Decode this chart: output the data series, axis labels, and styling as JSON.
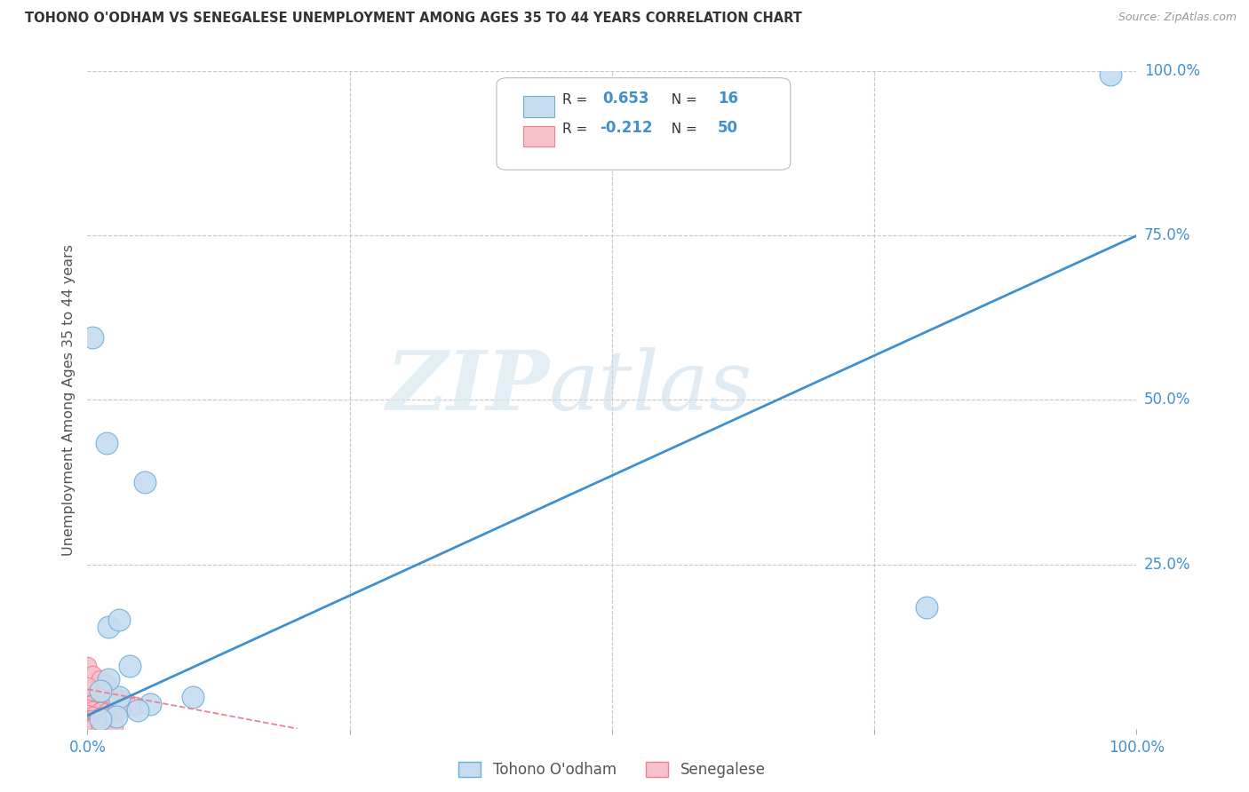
{
  "title": "TOHONO O'ODHAM VS SENEGALESE UNEMPLOYMENT AMONG AGES 35 TO 44 YEARS CORRELATION CHART",
  "source": "Source: ZipAtlas.com",
  "ylabel": "Unemployment Among Ages 35 to 44 years",
  "watermark_zip": "ZIP",
  "watermark_atlas": "atlas",
  "xlim": [
    0,
    1.0
  ],
  "ylim": [
    0,
    1.0
  ],
  "tohono_points": [
    [
      0.005,
      0.595
    ],
    [
      0.018,
      0.435
    ],
    [
      0.055,
      0.375
    ],
    [
      0.02,
      0.155
    ],
    [
      0.03,
      0.165
    ],
    [
      0.04,
      0.095
    ],
    [
      0.03,
      0.048
    ],
    [
      0.06,
      0.038
    ],
    [
      0.1,
      0.048
    ],
    [
      0.8,
      0.185
    ],
    [
      0.975,
      0.995
    ],
    [
      0.02,
      0.075
    ],
    [
      0.012,
      0.058
    ],
    [
      0.048,
      0.028
    ],
    [
      0.028,
      0.018
    ],
    [
      0.012,
      0.015
    ]
  ],
  "senegalese_points": [
    [
      0.0,
      0.095
    ],
    [
      0.005,
      0.082
    ],
    [
      0.012,
      0.075
    ],
    [
      0.018,
      0.068
    ],
    [
      0.0,
      0.058
    ],
    [
      0.005,
      0.052
    ],
    [
      0.012,
      0.048
    ],
    [
      0.018,
      0.044
    ],
    [
      0.0,
      0.04
    ],
    [
      0.005,
      0.038
    ],
    [
      0.012,
      0.035
    ],
    [
      0.018,
      0.038
    ],
    [
      0.025,
      0.042
    ],
    [
      0.032,
      0.038
    ],
    [
      0.038,
      0.035
    ],
    [
      0.0,
      0.03
    ],
    [
      0.005,
      0.028
    ],
    [
      0.012,
      0.026
    ],
    [
      0.018,
      0.025
    ],
    [
      0.025,
      0.028
    ],
    [
      0.0,
      0.022
    ],
    [
      0.005,
      0.02
    ],
    [
      0.012,
      0.019
    ],
    [
      0.018,
      0.018
    ],
    [
      0.025,
      0.02
    ],
    [
      0.0,
      0.015
    ],
    [
      0.005,
      0.014
    ],
    [
      0.012,
      0.013
    ],
    [
      0.0,
      0.01
    ],
    [
      0.005,
      0.009
    ],
    [
      0.012,
      0.008
    ],
    [
      0.018,
      0.01
    ],
    [
      0.0,
      0.007
    ],
    [
      0.005,
      0.006
    ],
    [
      0.0,
      0.004
    ],
    [
      0.005,
      0.004
    ],
    [
      0.012,
      0.005
    ],
    [
      0.0,
      0.002
    ],
    [
      0.005,
      0.002
    ],
    [
      0.0,
      0.001
    ],
    [
      0.005,
      0.001
    ],
    [
      0.012,
      0.001
    ],
    [
      0.025,
      0.003
    ],
    [
      0.0,
      0.065
    ],
    [
      0.018,
      0.055
    ],
    [
      0.032,
      0.045
    ],
    [
      0.025,
      0.05
    ],
    [
      0.038,
      0.04
    ],
    [
      0.045,
      0.035
    ],
    [
      0.032,
      0.03
    ]
  ],
  "tohono_color": "#c5dcf0",
  "senegalese_color": "#f7c0cc",
  "tohono_edge_color": "#6baed6",
  "senegalese_edge_color": "#f08090",
  "regression_blue_color": "#4090d0",
  "regression_pink_color": "#f08090",
  "blue_line_x0": 0.0,
  "blue_line_y0": 0.02,
  "blue_line_x1": 1.0,
  "blue_line_y1": 0.75,
  "pink_line_x0": 0.0,
  "pink_line_y0": 0.06,
  "pink_line_x1": 0.2,
  "pink_line_y1": 0.0,
  "tohono_R": "0.653",
  "tohono_N": "16",
  "senegalese_R": "-0.212",
  "senegalese_N": "50",
  "legend_label_1": "Tohono O'odham",
  "legend_label_2": "Senegalese",
  "background_color": "#ffffff",
  "grid_color": "#c8c8c8",
  "title_color": "#333333",
  "axis_label_color": "#555555",
  "tick_label_color": "#4090d0",
  "right_ytick_labels": [
    "25.0%",
    "50.0%",
    "75.0%",
    "100.0%"
  ],
  "right_ytick_positions": [
    0.25,
    0.5,
    0.75,
    1.0
  ],
  "xtick_labels_show": [
    "0.0%",
    "100.0%"
  ],
  "xtick_positions_show": [
    0.0,
    1.0
  ]
}
